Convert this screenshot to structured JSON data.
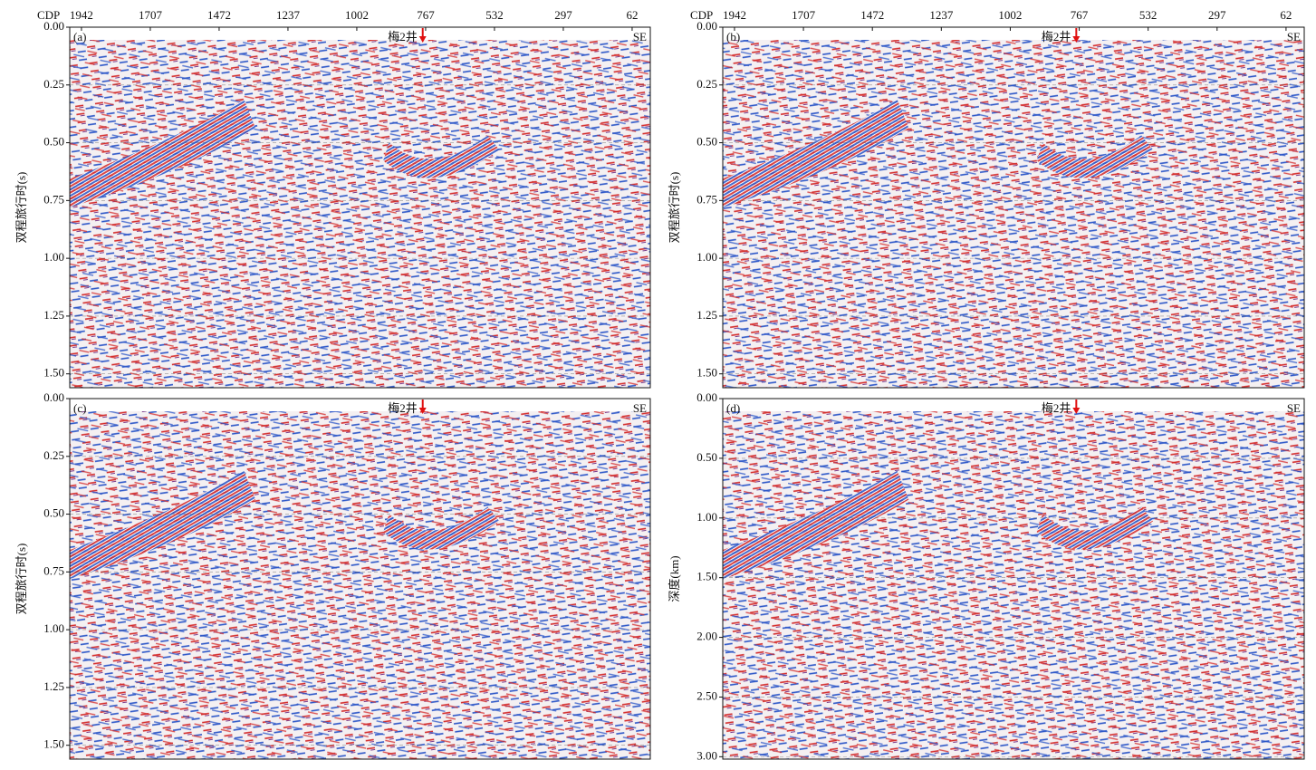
{
  "chart_data": [
    {
      "type": "seismic",
      "panel_label": "(a)",
      "x_label": "CDP",
      "xlim": [
        1982,
        0
      ],
      "xticks": [
        1942,
        1707,
        1472,
        1237,
        1002,
        767,
        532,
        297,
        62
      ],
      "y_label": "双程旅行时(s)",
      "ylim": [
        0,
        1.56
      ],
      "yticks": [
        {
          "value": 0,
          "label": "0.00"
        },
        {
          "value": 0.25,
          "label": "0.25"
        },
        {
          "value": 0.5,
          "label": "0.50"
        },
        {
          "value": 0.75,
          "label": "0.75"
        },
        {
          "value": 1,
          "label": "1.00"
        },
        {
          "value": 1.25,
          "label": "1.25"
        },
        {
          "value": 1.5,
          "label": "1.50"
        }
      ],
      "grid": true,
      "well_label": "梅2井",
      "direction_label": "SE"
    },
    {
      "type": "seismic",
      "panel_label": "(b)",
      "x_label": "CDP",
      "xlim": [
        1982,
        0
      ],
      "xticks": [
        1942,
        1707,
        1472,
        1237,
        1002,
        767,
        532,
        297,
        62
      ],
      "y_label": "双程旅行时(s)",
      "ylim": [
        0,
        1.56
      ],
      "yticks": [
        {
          "value": 0,
          "label": "0.00"
        },
        {
          "value": 0.25,
          "label": "0.25"
        },
        {
          "value": 0.5,
          "label": "0.50"
        },
        {
          "value": 0.75,
          "label": "0.75"
        },
        {
          "value": 1,
          "label": "1.00"
        },
        {
          "value": 1.25,
          "label": "1.25"
        },
        {
          "value": 1.5,
          "label": "1.50"
        }
      ],
      "grid": true,
      "well_label": "梅2井",
      "direction_label": "SE"
    },
    {
      "type": "seismic",
      "panel_label": "(c)",
      "y_label": "双程旅行时(s)",
      "ylim": [
        0,
        1.56
      ],
      "yticks": [
        {
          "value": 0,
          "label": "0.00"
        },
        {
          "value": 0.25,
          "label": "0.25"
        },
        {
          "value": 0.5,
          "label": "0.50"
        },
        {
          "value": 0.75,
          "label": "0.75"
        },
        {
          "value": 1,
          "label": "1.00"
        },
        {
          "value": 1.25,
          "label": "1.25"
        },
        {
          "value": 1.5,
          "label": "1.50"
        }
      ],
      "grid": true,
      "well_label": "梅2井",
      "direction_label": "SE"
    },
    {
      "type": "seismic",
      "panel_label": "(d)",
      "y_label": "深度(km)",
      "ylim": [
        0,
        3.02
      ],
      "yticks": [
        {
          "value": 0,
          "label": "0.00"
        },
        {
          "value": 0.5,
          "label": "0.50"
        },
        {
          "value": 1,
          "label": "1.00"
        },
        {
          "value": 1.5,
          "label": "1.50"
        },
        {
          "value": 2,
          "label": "2.00"
        },
        {
          "value": 2.5,
          "label": "2.50"
        },
        {
          "value": 3,
          "label": "3.00"
        }
      ],
      "grid": true,
      "well_label": "梅2井",
      "direction_label": "SE"
    }
  ]
}
